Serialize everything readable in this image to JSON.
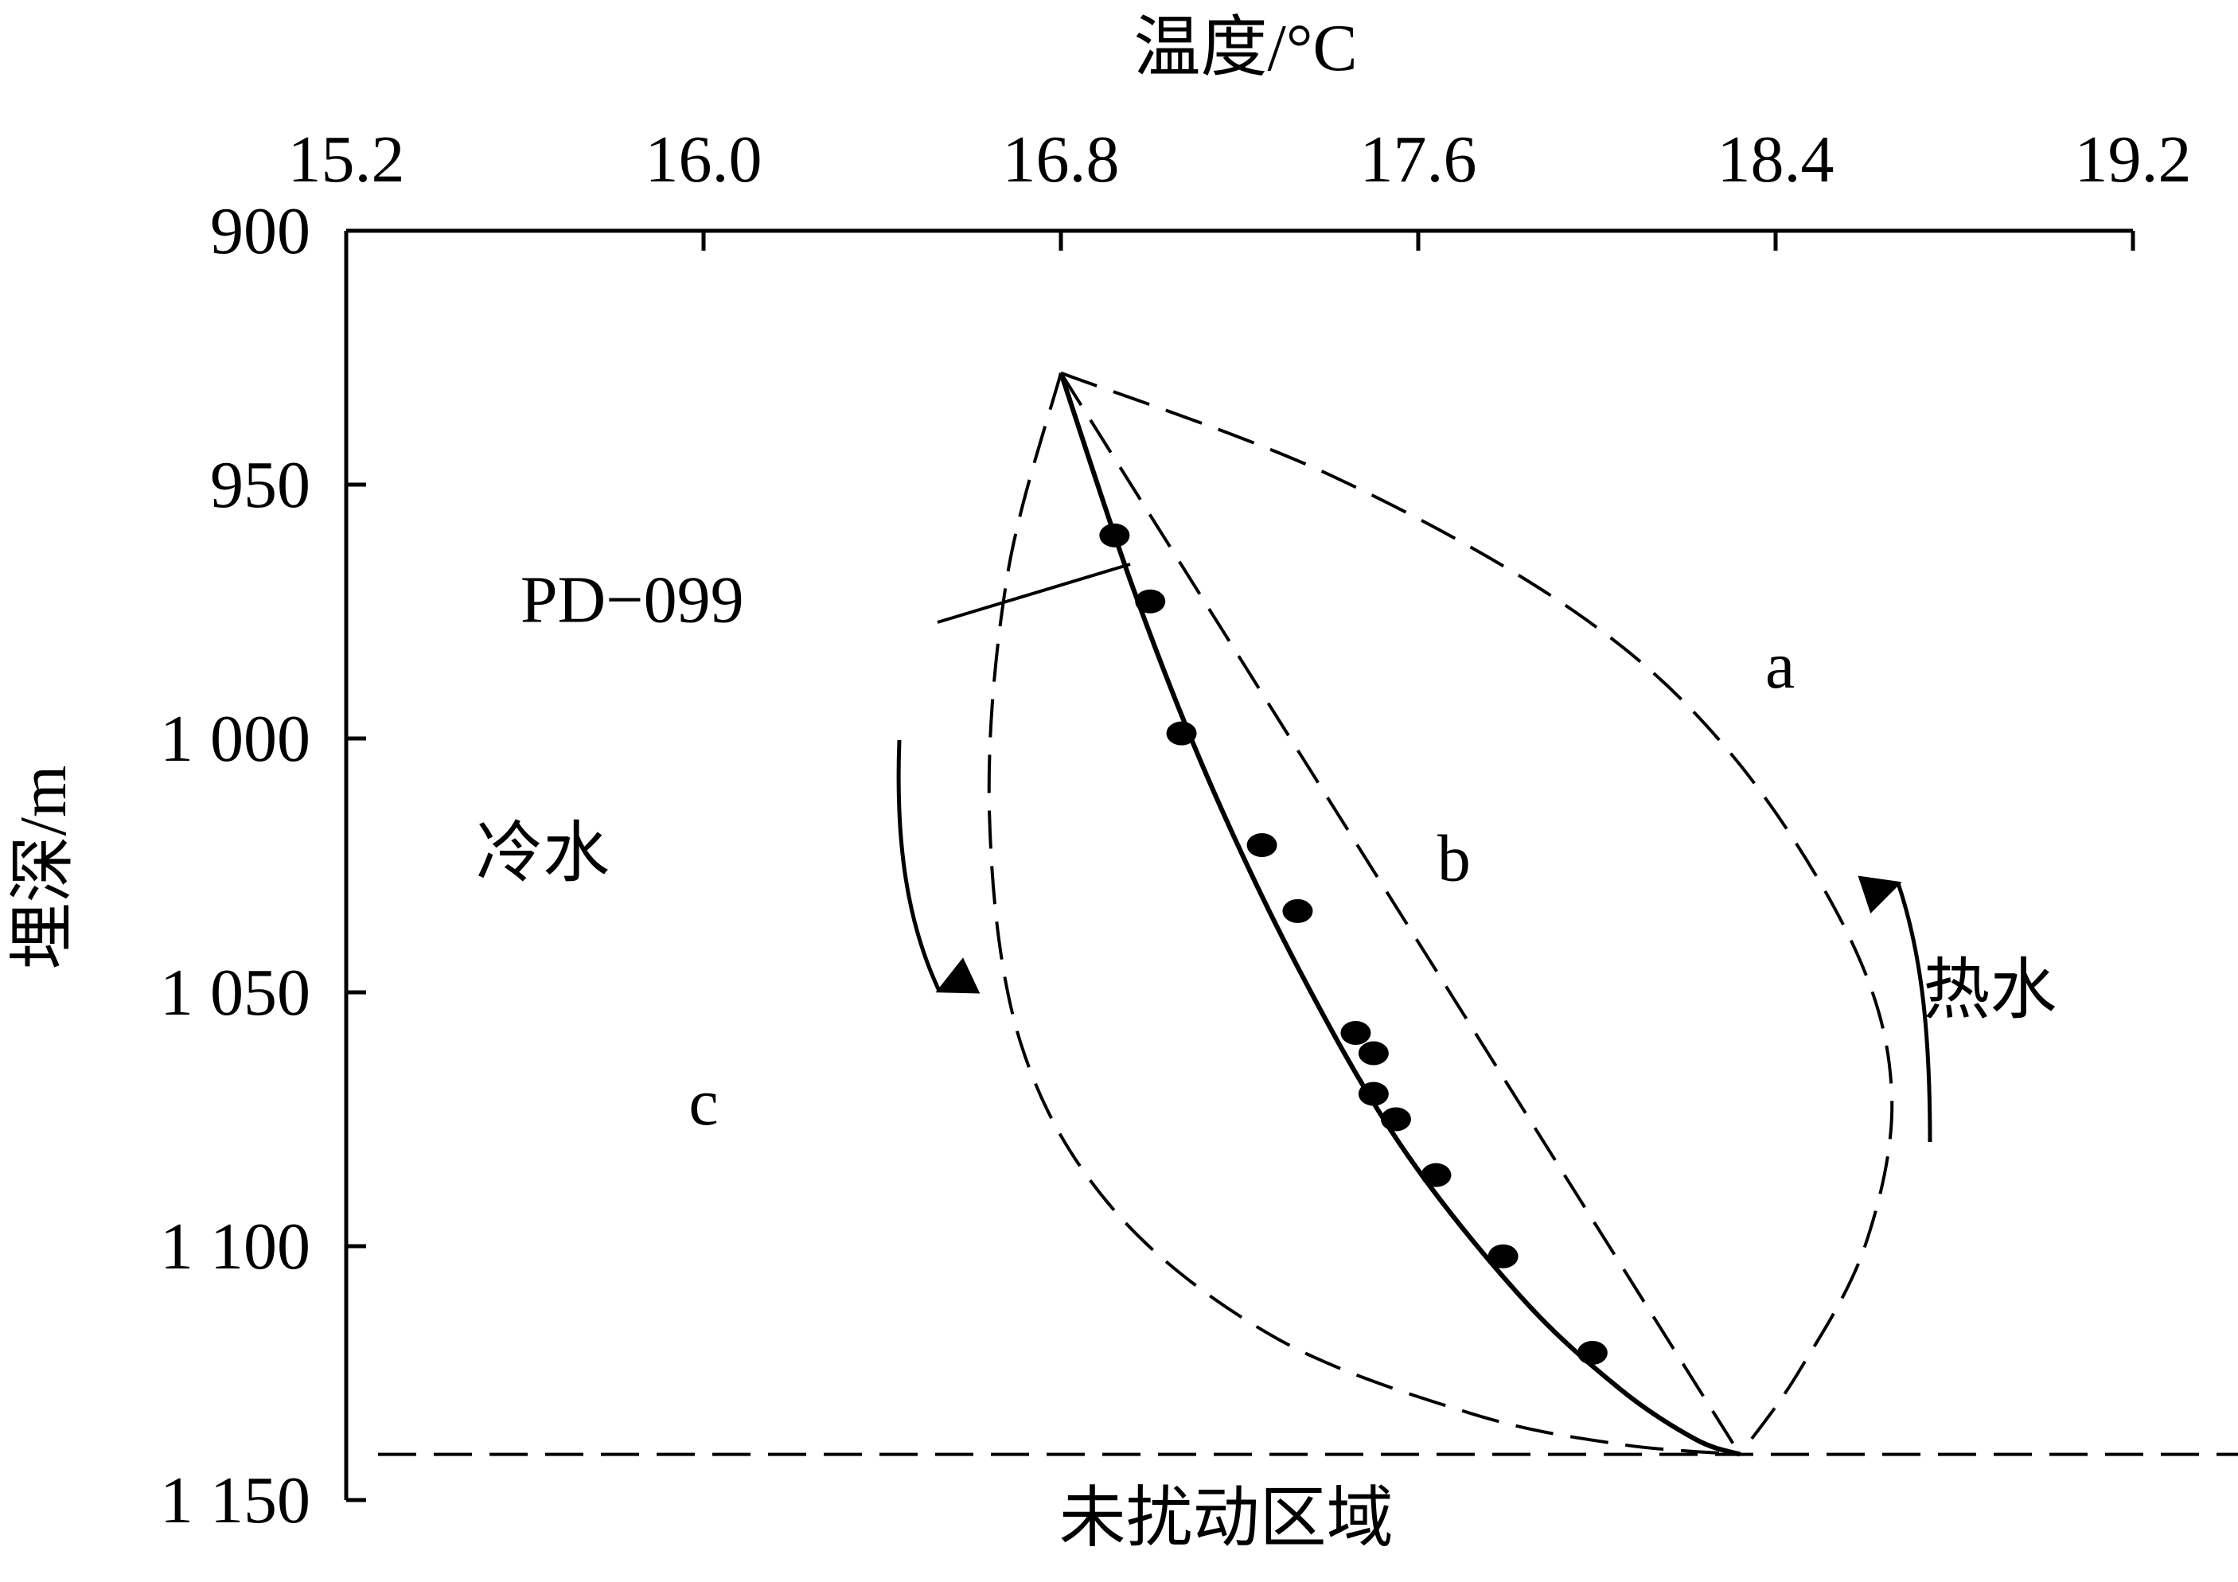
{
  "chart_data": {
    "type": "scatter",
    "x_axis": {
      "label": "温度/°C",
      "position": "top",
      "range": [
        15.2,
        19.2
      ],
      "ticks": [
        "15.2",
        "16.0",
        "16.8",
        "17.6",
        "18.4",
        "19.2"
      ],
      "tick_values": [
        15.2,
        16.0,
        16.8,
        17.6,
        18.4,
        19.2
      ]
    },
    "y_axis": {
      "label": "埋深/m",
      "range": [
        900,
        1150
      ],
      "inverted": true,
      "ticks": [
        "900",
        "950",
        "1 000",
        "1 050",
        "1 100",
        "1 150"
      ],
      "tick_values": [
        900,
        950,
        1000,
        1050,
        1100,
        1150
      ]
    },
    "series": [
      {
        "name": "PD−099",
        "kind": "points",
        "x": [
          16.92,
          17.0,
          17.07,
          17.25,
          17.33,
          17.46,
          17.5,
          17.5,
          17.55,
          17.64,
          17.79,
          17.99
        ],
        "y": [
          960,
          973,
          999,
          1021,
          1034,
          1058,
          1062,
          1070,
          1075,
          1086,
          1102,
          1121
        ]
      },
      {
        "name": "PD−099",
        "kind": "solid-curve",
        "x": [
          16.8,
          16.96,
          17.13,
          17.33,
          17.56,
          17.83,
          18.05,
          18.22,
          18.32
        ],
        "y": [
          928,
          970,
          1008,
          1045,
          1080,
          1110,
          1128,
          1138,
          1141
        ]
      },
      {
        "name": "a",
        "kind": "dashed-curve",
        "x": [
          16.8,
          17.4,
          17.95,
          18.3,
          18.57,
          18.66,
          18.6,
          18.45,
          18.32
        ],
        "y": [
          928,
          948,
          975,
          1003,
          1040,
          1070,
          1100,
          1125,
          1141
        ]
      },
      {
        "name": "b",
        "kind": "dashed-line",
        "x": [
          16.8,
          18.32
        ],
        "y": [
          928,
          1141
        ]
      },
      {
        "name": "c",
        "kind": "dashed-curve",
        "x": [
          16.8,
          16.68,
          16.64,
          16.71,
          16.92,
          17.28,
          17.72,
          18.05,
          18.32
        ],
        "y": [
          928,
          968,
          1015,
          1060,
          1093,
          1118,
          1133,
          1139,
          1141
        ]
      },
      {
        "name": "未扰动区域",
        "kind": "dashed-hline",
        "y": 1141
      }
    ],
    "annotations": [
      {
        "text": "PD−099",
        "x": 15.84,
        "y": 977
      },
      {
        "text": "a",
        "x": 18.41,
        "y": 990
      },
      {
        "text": "b",
        "x": 17.68,
        "y": 1028
      },
      {
        "text": "c",
        "x": 16.0,
        "y": 1076
      },
      {
        "text": "冷水",
        "x": 15.64,
        "y": 1027
      },
      {
        "text": "热水",
        "x": 18.88,
        "y": 1054
      },
      {
        "text": "未扰动区域",
        "x": 17.17,
        "y": 1158
      }
    ],
    "arrows": [
      {
        "name": "冷水",
        "direction": "down"
      },
      {
        "name": "热水",
        "direction": "up"
      }
    ],
    "grid": false,
    "legend": "none"
  }
}
